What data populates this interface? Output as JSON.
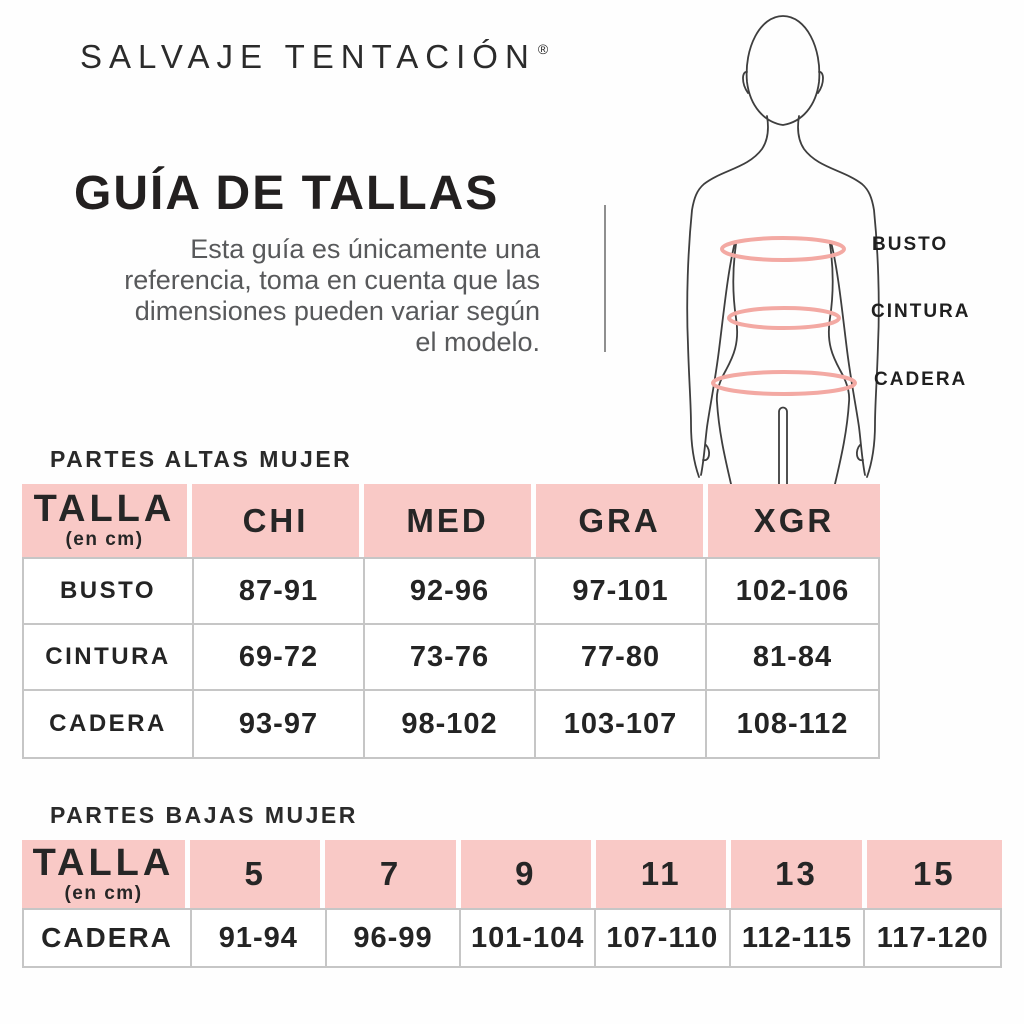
{
  "brand": {
    "name": "SALVAJE TENTACIÓN",
    "registered": "®"
  },
  "header": {
    "title": "GUÍA DE TALLAS",
    "description": "Esta guía es únicamente una referencia, toma en cuenta que las dimensiones pueden variar según el modelo.",
    "description_lines": [
      "Esta guía es únicamente una",
      "referencia, toma en cuenta que las",
      "dimensiones pueden variar según",
      "el modelo."
    ]
  },
  "figure": {
    "labels": [
      "BUSTO",
      "CINTURA",
      "CADERA"
    ]
  },
  "tables": [
    {
      "title": "PARTES ALTAS MUJER",
      "header": {
        "talla": "TALLA",
        "unit": "(en cm)",
        "sizes": [
          "CHI",
          "MED",
          "GRA",
          "XGR"
        ]
      },
      "rows": [
        {
          "label": "BUSTO",
          "values": [
            "87-91",
            "92-96",
            "97-101",
            "102-106"
          ]
        },
        {
          "label": "CINTURA",
          "values": [
            "69-72",
            "73-76",
            "77-80",
            "81-84"
          ]
        },
        {
          "label": "CADERA",
          "values": [
            "93-97",
            "98-102",
            "103-107",
            "108-112"
          ]
        }
      ]
    },
    {
      "title": "PARTES BAJAS MUJER",
      "header": {
        "talla": "TALLA",
        "unit": "(en cm)",
        "sizes": [
          "5",
          "7",
          "9",
          "11",
          "13",
          "15"
        ]
      },
      "rows": [
        {
          "label": "CADERA",
          "values": [
            "91-94",
            "96-99",
            "101-104",
            "107-110",
            "112-115",
            "117-120"
          ]
        }
      ]
    }
  ],
  "colors": {
    "header_pink": "#f9c9c6",
    "measure_line_pink": "#f3a9a3",
    "table_border_gray": "#c6c6c6",
    "text_dark": "#231f20",
    "text_gray": "#58595b",
    "silhouette_outline": "#3e3e3e"
  }
}
